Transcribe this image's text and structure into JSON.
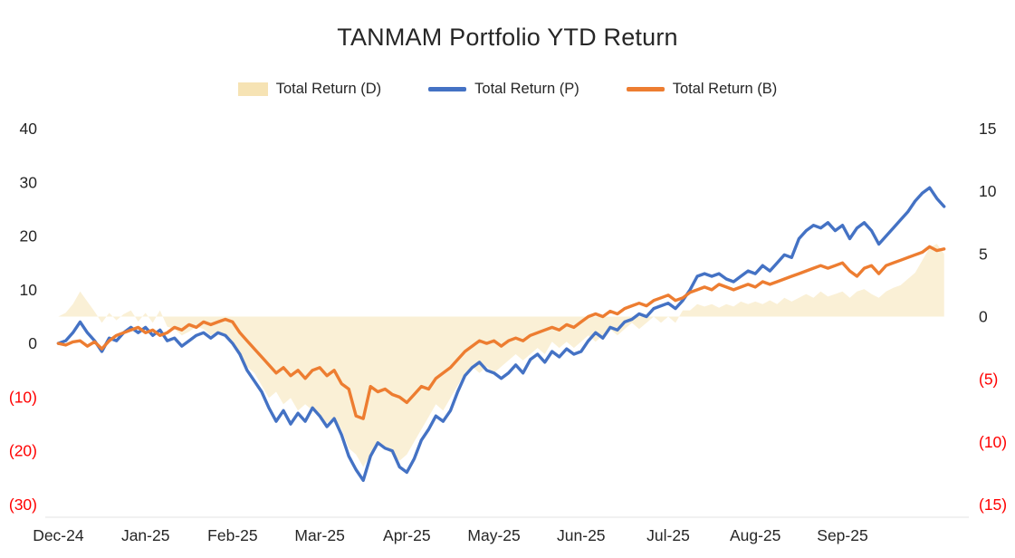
{
  "chart_data": {
    "type": "line",
    "title": "TANMAM Portfolio YTD Return",
    "legend_position": "top",
    "background_color": "#FFFFFF",
    "x_tick_labels": [
      "Dec-24",
      "Jan-25",
      "Feb-25",
      "Mar-25",
      "Apr-25",
      "May-25",
      "Jun-25",
      "Jul-25",
      "Aug-25",
      "Sep-25"
    ],
    "x_start_month": 0,
    "x_step_months": 0.083333,
    "x_axis_range_months": [
      -0.15,
      10.45
    ],
    "left_axis": {
      "min": -30,
      "max": 40,
      "ticks": [
        40,
        30,
        20,
        10,
        0,
        -10,
        -20,
        -30
      ]
    },
    "right_axis": {
      "min": -15,
      "max": 15,
      "ticks": [
        15,
        10,
        5,
        0,
        -5,
        -10,
        -15
      ]
    },
    "negative_label_style": {
      "format": "parentheses",
      "color": "#FF0000"
    },
    "positive_label_color": "#262626",
    "axis_label_font_px": 17.5,
    "grid": "off",
    "series": [
      {
        "name": "Total Return (D)",
        "type": "area",
        "axis": "right",
        "color": "#F6E3B4",
        "fill_opacity": 0.55,
        "values": [
          0,
          0.3,
          1,
          2,
          1.2,
          0.4,
          -0.5,
          0.3,
          -0.3,
          0.2,
          0.5,
          -0.4,
          0.3,
          -0.5,
          0.5,
          -0.8,
          -1,
          -1.5,
          -1.2,
          -0.8,
          -1,
          -1.5,
          -1.2,
          -1.5,
          -2,
          -3,
          -4,
          -4.5,
          -5.5,
          -6.5,
          -6,
          -7,
          -6.5,
          -7.5,
          -7,
          -7.5,
          -8,
          -8.5,
          -8,
          -9,
          -10.5,
          -11,
          -12,
          -11,
          -10,
          -10.5,
          -11,
          -11.5,
          -11,
          -10,
          -9,
          -8,
          -7,
          -7.5,
          -6.5,
          -5.5,
          -4.5,
          -4,
          -4.5,
          -4,
          -4.5,
          -4,
          -3.5,
          -3,
          -3.5,
          -3,
          -2.5,
          -3,
          -2,
          -2.5,
          -2,
          -2.5,
          -2,
          -1.5,
          -2,
          -1.5,
          -1,
          -1.5,
          -1,
          -0.5,
          -1,
          -0.5,
          0,
          -0.5,
          0,
          -0.5,
          0.5,
          0.5,
          1,
          0.8,
          1,
          0.7,
          1,
          0.8,
          1.2,
          1,
          1.2,
          1,
          1.3,
          1,
          1.5,
          1.2,
          1.5,
          1.8,
          1.5,
          2,
          1.6,
          1.8,
          2,
          1.5,
          2,
          2.2,
          1.8,
          1.5,
          2,
          2.3,
          2.5,
          3,
          3.5,
          4.5,
          5.5,
          5.8,
          5
        ]
      },
      {
        "name": "Total Return (P)",
        "type": "line",
        "axis": "left",
        "color": "#4472C4",
        "line_width": 3.4,
        "values": [
          0,
          0.5,
          2,
          4,
          2,
          0.5,
          -1.5,
          1,
          0.5,
          2,
          3,
          2,
          3,
          1.5,
          2.5,
          0.5,
          1,
          -0.5,
          0.5,
          1.5,
          2,
          1,
          2,
          1.5,
          0,
          -2,
          -5,
          -7,
          -9,
          -12,
          -14.5,
          -12.5,
          -15,
          -13,
          -14.5,
          -12,
          -13.5,
          -15.5,
          -14,
          -17,
          -21,
          -23.5,
          -25.5,
          -21,
          -18.5,
          -19.5,
          -20,
          -23,
          -24,
          -21.5,
          -18,
          -16,
          -13.5,
          -14.5,
          -12.5,
          -9,
          -6,
          -4.5,
          -3.5,
          -5,
          -5.5,
          -6.5,
          -5.5,
          -4,
          -5.5,
          -3,
          -2,
          -3.5,
          -1.5,
          -2.5,
          -1,
          -2,
          -1.5,
          0.5,
          2,
          1,
          3,
          2.5,
          4,
          4.5,
          5.5,
          5,
          6.5,
          7,
          7.5,
          6.5,
          8,
          10,
          12.5,
          13,
          12.5,
          13,
          12,
          11.5,
          12.5,
          13.5,
          13,
          14.5,
          13.5,
          15,
          16.5,
          16,
          19.5,
          21,
          22,
          21.5,
          22.5,
          21,
          22,
          19.5,
          21.5,
          22.5,
          21,
          18.5,
          20,
          21.5,
          23,
          24.5,
          26.5,
          28,
          29,
          27,
          25.5
        ]
      },
      {
        "name": "Total Return (B)",
        "type": "line",
        "axis": "left",
        "color": "#ED7D31",
        "line_width": 3.4,
        "values": [
          0,
          -0.3,
          0.3,
          0.5,
          -0.5,
          0.3,
          -1,
          0.5,
          1.5,
          2,
          2.5,
          3,
          2,
          2.5,
          1.5,
          2,
          3,
          2.5,
          3.5,
          3,
          4,
          3.5,
          4,
          4.5,
          4,
          2,
          0.5,
          -1,
          -2.5,
          -4,
          -5.5,
          -4.5,
          -6,
          -5,
          -6.5,
          -5,
          -4.5,
          -6,
          -5,
          -7.5,
          -8.5,
          -13.5,
          -14,
          -8,
          -9,
          -8.5,
          -9.5,
          -10,
          -11,
          -9.5,
          -8,
          -8.5,
          -6.5,
          -5.5,
          -4.5,
          -3,
          -1.5,
          -0.5,
          0.5,
          0,
          0.5,
          -0.5,
          0.5,
          1,
          0.5,
          1.5,
          2,
          2.5,
          3,
          2.5,
          3.5,
          3,
          4,
          5,
          5.5,
          5,
          6,
          5.5,
          6.5,
          7,
          7.5,
          7,
          8,
          8.5,
          9,
          8,
          8.5,
          9.5,
          10,
          10.5,
          10,
          11,
          10.5,
          10,
          10.5,
          11,
          10.5,
          11.5,
          11,
          11.5,
          12,
          12.5,
          13,
          13.5,
          14,
          14.5,
          14,
          14.5,
          15,
          13.5,
          12.5,
          14,
          14.5,
          13,
          14.5,
          15,
          15.5,
          16,
          16.5,
          17,
          18,
          17.3,
          17.6
        ]
      }
    ]
  }
}
